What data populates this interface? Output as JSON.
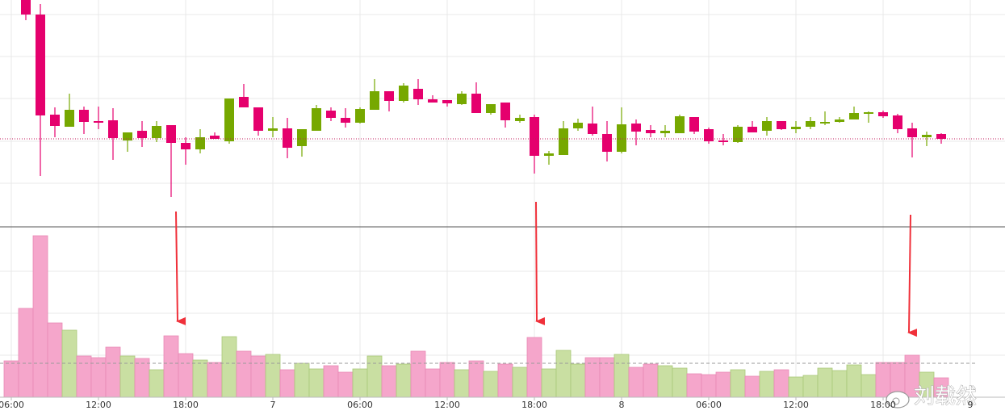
{
  "chart_data": {
    "type": "candlestick",
    "categories": [
      "06:00",
      null,
      null,
      null,
      null,
      null,
      "12:00",
      null,
      null,
      null,
      null,
      null,
      "18:00",
      null,
      null,
      null,
      null,
      null,
      "7",
      null,
      null,
      null,
      null,
      null,
      "06:00",
      null,
      null,
      null,
      null,
      null,
      "12:00",
      null,
      null,
      null,
      null,
      null,
      "18:00",
      null,
      null,
      null,
      null,
      null,
      "8",
      null,
      null,
      null,
      null,
      null,
      "06:00",
      null,
      null,
      null,
      null,
      null,
      "12:00",
      null,
      null,
      null,
      null,
      null,
      "18:00",
      null,
      null,
      null,
      null,
      null,
      "9"
    ],
    "open": [
      null,
      280,
      262,
      138,
      123,
      144,
      130,
      131,
      106,
      118,
      109,
      125,
      103,
      95,
      112,
      105,
      160,
      147,
      118,
      121,
      99,
      118,
      143,
      134,
      128,
      144,
      167,
      155,
      170,
      157,
      156,
      151,
      164,
      140,
      153,
      130,
      135,
      87,
      88,
      121,
      127,
      114,
      92,
      127,
      119,
      115,
      115,
      135,
      120,
      106,
      104,
      123,
      118,
      130,
      120,
      123,
      127,
      129,
      132,
      139,
      141,
      137,
      121,
      110,
      114,
      null,
      null
    ],
    "high": [
      null,
      280,
      275,
      147,
      164,
      148,
      148,
      146,
      116,
      130,
      130,
      125,
      110,
      120,
      116,
      158,
      176,
      147,
      135,
      134,
      120,
      150,
      147,
      146,
      147,
      182,
      167,
      177,
      182,
      162,
      156,
      167,
      178,
      151,
      153,
      138,
      138,
      93,
      130,
      133,
      148,
      130,
      147,
      132,
      125,
      125,
      138,
      135,
      122,
      114,
      125,
      130,
      135,
      130,
      130,
      135,
      142,
      135,
      148,
      142,
      143,
      139,
      128,
      117,
      115,
      null,
      null
    ],
    "low": [
      null,
      255,
      62,
      110,
      123,
      114,
      120,
      82,
      92,
      98,
      104,
      36,
      76,
      90,
      108,
      102,
      147,
      112,
      110,
      84,
      86,
      118,
      130,
      122,
      127,
      144,
      142,
      153,
      150,
      153,
      148,
      150,
      140,
      138,
      122,
      128,
      65,
      76,
      88,
      118,
      112,
      80,
      90,
      100,
      110,
      110,
      115,
      114,
      102,
      100,
      103,
      116,
      112,
      119,
      115,
      120,
      125,
      128,
      132,
      128,
      134,
      115,
      85,
      99,
      102,
      null,
      null
    ],
    "close": [
      null,
      262,
      137,
      124,
      144,
      129,
      128,
      109,
      116,
      109,
      124,
      103,
      95,
      110,
      108,
      158,
      147,
      118,
      121,
      97,
      120,
      146,
      134,
      128,
      145,
      167,
      155,
      174,
      157,
      153,
      152,
      164,
      140,
      151,
      131,
      134,
      87,
      90,
      121,
      128,
      114,
      92,
      126,
      117,
      115,
      118,
      136,
      117,
      105,
      104,
      123,
      116,
      130,
      120,
      123,
      130,
      129,
      132,
      140,
      141,
      136,
      120,
      110,
      113,
      108,
      null,
      null
    ],
    "volume": [
      45,
      110,
      200,
      92,
      83,
      51,
      49,
      62,
      51,
      48,
      34,
      76,
      54,
      46,
      43,
      75,
      57,
      51,
      53,
      34,
      42,
      35,
      39,
      31,
      35,
      51,
      39,
      41,
      57,
      35,
      43,
      34,
      45,
      32,
      41,
      37,
      74,
      35,
      58,
      41,
      49,
      49,
      53,
      37,
      41,
      39,
      36,
      29,
      28,
      31,
      34,
      26,
      32,
      34,
      25,
      27,
      36,
      33,
      40,
      28,
      43,
      43,
      52,
      31,
      24,
      null,
      null
    ],
    "volume_reference": 42,
    "ylim": [
      0,
      280
    ],
    "yticks": [
      53,
      105,
      158,
      210,
      262
    ],
    "volume_ylim": [
      0,
      210
    ],
    "volume_yticks": [
      52,
      104,
      156
    ],
    "grid": true,
    "up_color": "#76a800",
    "down_color": "#e5006d",
    "volume_up_color": "#c9dfa2",
    "volume_down_color": "#f5a6cb"
  },
  "watermark": "刘载然"
}
